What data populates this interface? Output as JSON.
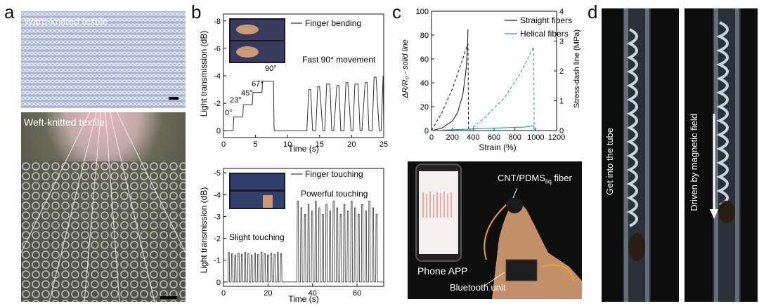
{
  "panels": {
    "a": "a",
    "b": "b",
    "c": "c",
    "d": "d"
  },
  "panel_a": {
    "top_label": "Warp-knitted textile",
    "bottom_label": "Weft-knitted textile"
  },
  "panel_c_photo": {
    "fiber_label_main": "CNT/PDMS",
    "fiber_label_sub": "liq",
    "fiber_label_end": " fiber",
    "phone_label": "Phone APP",
    "bt_label": "Bluetooth unit"
  },
  "panel_d": {
    "left_label": "Get into the tube",
    "right_label": "Driven by magnetic field"
  },
  "colors": {
    "trace": "#333333",
    "straight": "#222222",
    "helical": "#2a9d9b"
  },
  "chart_data": [
    {
      "id": "b-top",
      "type": "line",
      "xlabel": "Time (s)",
      "ylabel": "Light transmission (dB)",
      "xlim": [
        0,
        25
      ],
      "ylim": [
        0.5,
        -8.5
      ],
      "xticks": [
        0,
        5,
        10,
        15,
        20,
        25
      ],
      "yticks": [
        0,
        -2,
        -4,
        -6,
        -8
      ],
      "legend": "Finger bending",
      "annotations": [
        "0°",
        "23°",
        "45°",
        "67°",
        "90°",
        "Fast 90° movement"
      ],
      "series": [
        {
          "name": "Finger bending",
          "x": [
            0,
            1.5,
            1.6,
            3,
            3.1,
            4.5,
            4.6,
            6,
            6.1,
            7.8,
            7.9,
            8,
            9,
            10,
            11,
            12,
            13,
            13.3,
            13.6,
            13.9,
            14.4,
            14.7,
            15,
            15.5,
            15.8,
            16.1,
            16.6,
            16.9,
            17.2,
            17.7,
            18,
            18.3,
            18.8,
            19.1,
            19.4,
            19.9,
            20.2,
            20.5,
            21,
            21.3,
            21.6,
            22.1,
            22.4,
            22.7,
            23.2,
            23.5,
            23.8,
            24.3,
            24.6,
            24.9,
            25
          ],
          "y": [
            0,
            0,
            -1,
            -1,
            -1.9,
            -1.9,
            -2.8,
            -2.8,
            -3.6,
            -3.6,
            -0.2,
            0,
            0,
            0,
            0,
            0,
            0,
            -3.0,
            -3.0,
            0,
            0,
            -3.2,
            -3.2,
            0,
            0,
            -3.4,
            -3.4,
            0,
            0,
            -3.3,
            -3.3,
            0,
            0,
            -3.5,
            -3.5,
            0,
            0,
            -3.4,
            -3.4,
            0,
            0,
            -3.5,
            -3.5,
            0,
            0,
            -3.9,
            -3.9,
            0,
            0,
            -4.0,
            0
          ]
        }
      ]
    },
    {
      "id": "b-bottom",
      "type": "line",
      "xlabel": "Time (s)",
      "ylabel": "Light transmission (dB)",
      "xlim": [
        0,
        72
      ],
      "ylim": [
        0.2,
        -5.2
      ],
      "xticks": [
        0,
        20,
        40,
        60
      ],
      "yticks": [
        0,
        -1,
        -2,
        -3,
        -4,
        -5
      ],
      "legend": "Finger touching",
      "annotations": [
        "Powerful touching",
        "Slight touching"
      ],
      "series": [
        {
          "name": "Finger touching",
          "spikes_slight": {
            "start": 2,
            "end": 27,
            "count": 17,
            "peak": -1.3
          },
          "spikes_strong": {
            "start": 33,
            "end": 70,
            "count": 23,
            "peak": -3.4
          }
        }
      ]
    },
    {
      "id": "c",
      "type": "line",
      "xlabel": "Strain (%)",
      "ylabel_left": "ΔR/R₀ - solid line",
      "ylabel_right": "Stress-dash line (MPa)",
      "xlim": [
        0,
        1200
      ],
      "ylim_left": [
        0,
        100
      ],
      "ylim_right": [
        0,
        4
      ],
      "xticks": [
        0,
        200,
        400,
        600,
        800,
        1000,
        1200
      ],
      "yticks_left": [
        0,
        20,
        40,
        60,
        80,
        100
      ],
      "yticks_right": [
        0,
        1,
        2,
        3,
        4
      ],
      "series": [
        {
          "name": "Straight fibers",
          "axis": "left",
          "style": "solid",
          "x": [
            0,
            100,
            200,
            250,
            300,
            330,
            345,
            350
          ],
          "y": [
            0,
            2,
            8,
            15,
            30,
            50,
            70,
            85
          ]
        },
        {
          "name": "Straight fibers stress",
          "axis": "right",
          "style": "dash",
          "x": [
            0,
            100,
            200,
            300,
            345,
            350,
            355
          ],
          "y": [
            0,
            0.6,
            1.4,
            2.4,
            2.9,
            2.9,
            0
          ]
        },
        {
          "name": "Helical fibers",
          "axis": "left",
          "style": "solid",
          "x": [
            0,
            300,
            600,
            900,
            980,
            985
          ],
          "y": [
            0,
            1,
            2,
            3,
            4,
            0
          ]
        },
        {
          "name": "Helical fibers stress",
          "axis": "right",
          "style": "dash",
          "x": [
            360,
            500,
            700,
            850,
            950,
            980,
            985
          ],
          "y": [
            0,
            0.4,
            1.1,
            1.9,
            2.6,
            2.8,
            0
          ]
        }
      ],
      "legend": [
        "Straight fibers",
        "Helical fibers"
      ]
    }
  ]
}
